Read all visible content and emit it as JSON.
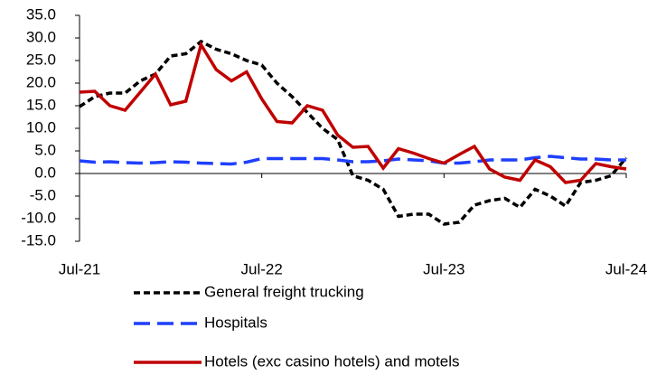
{
  "chart_data": {
    "type": "line",
    "categories": [
      "Jul-21",
      null,
      null,
      null,
      null,
      null,
      null,
      null,
      null,
      null,
      null,
      null,
      "Jul-22",
      null,
      null,
      null,
      null,
      null,
      null,
      null,
      null,
      null,
      null,
      null,
      "Jul-23",
      null,
      null,
      null,
      null,
      null,
      null,
      null,
      null,
      null,
      null,
      null,
      "Jul-24"
    ],
    "series": [
      {
        "name": "General freight trucking",
        "color": "#000000",
        "dash": "dashed",
        "values": [
          14.8,
          17,
          17.8,
          17.8,
          20.5,
          22,
          26,
          26.5,
          29.2,
          27.5,
          26.5,
          25,
          24,
          20,
          17,
          13.5,
          10,
          7.5,
          -0.5,
          -1.5,
          -3.5,
          -9.5,
          -9,
          -9,
          -11.2,
          -10.8,
          -7,
          -6,
          -5.5,
          -7.5,
          -3.5,
          -5,
          -7.2,
          -2,
          -1.5,
          -0.5,
          3.5
        ]
      },
      {
        "name": "Hospitals",
        "color": "#1f3fff",
        "dash": "longdash",
        "values": [
          2.8,
          2.5,
          2.6,
          2.4,
          2.3,
          2.4,
          2.6,
          2.5,
          2.3,
          2.2,
          2.1,
          2.5,
          3.3,
          3.3,
          3.3,
          3.3,
          3.3,
          3.0,
          2.6,
          2.6,
          2.8,
          3.2,
          3.0,
          2.8,
          2.3,
          2.3,
          2.6,
          3.0,
          3.0,
          3.0,
          3.5,
          3.8,
          3.5,
          3.2,
          3.2,
          3.0,
          3.0
        ]
      },
      {
        "name": "Hotels (exc casino hotels) and motels",
        "color": "#c00000",
        "dash": "solid",
        "values": [
          18,
          18.2,
          15,
          14,
          18,
          22,
          15.2,
          16,
          28.5,
          23,
          20.5,
          22.5,
          16.5,
          11.5,
          11.2,
          15,
          14,
          8.5,
          5.8,
          6,
          1.2,
          5.5,
          4.5,
          3.3,
          2.3,
          4.2,
          6,
          1,
          -0.8,
          -1.5,
          3,
          1.5,
          -2,
          -1.5,
          2.2,
          1.5,
          1.0
        ]
      }
    ],
    "ylim": [
      -15,
      35
    ],
    "yticks": [
      {
        "value": -15,
        "label": "-15.0"
      },
      {
        "value": -10,
        "label": "-10.0"
      },
      {
        "value": -5,
        "label": "-5.0"
      },
      {
        "value": 0,
        "label": "0.0"
      },
      {
        "value": 5,
        "label": "5.0"
      },
      {
        "value": 10,
        "label": "10.0"
      },
      {
        "value": 15,
        "label": "15.0"
      },
      {
        "value": 20,
        "label": "20.0"
      },
      {
        "value": 25,
        "label": "25.0"
      },
      {
        "value": 30,
        "label": "30.0"
      },
      {
        "value": 35,
        "label": "35.0"
      }
    ],
    "grid": false,
    "legend": "bottom"
  }
}
